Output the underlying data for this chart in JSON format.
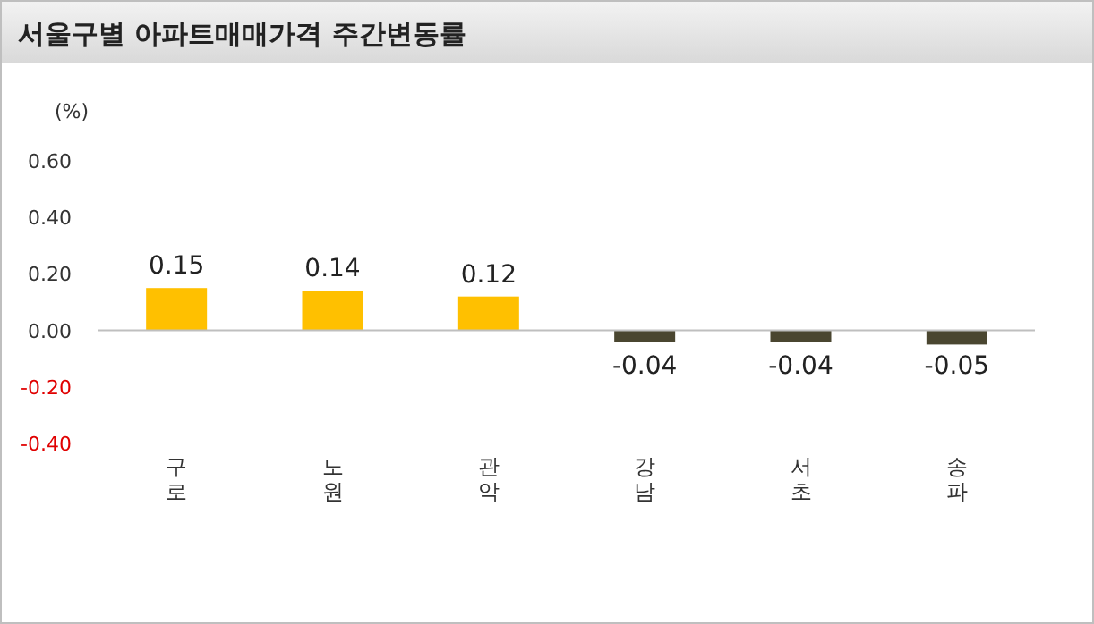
{
  "chart_data": {
    "type": "bar",
    "title": "서울구별 아파트매매가격 주간변동률",
    "ylabel": "(%)",
    "categories": [
      "구로",
      "노원",
      "관악",
      "강남",
      "서초",
      "송파"
    ],
    "values": [
      0.15,
      0.14,
      0.12,
      -0.04,
      -0.04,
      -0.05
    ],
    "colors": [
      "#ffc000",
      "#ffc000",
      "#ffc000",
      "#4a4630",
      "#4a4630",
      "#4a4630"
    ],
    "ylim": [
      -0.4,
      0.6
    ],
    "yticks": [
      {
        "value": 0.6,
        "label": "0.60"
      },
      {
        "value": 0.4,
        "label": "0.40"
      },
      {
        "value": 0.2,
        "label": "0.20"
      },
      {
        "value": 0,
        "label": "0.00"
      },
      {
        "value": -0.2,
        "label": "-0.20"
      },
      {
        "value": -0.4,
        "label": "-0.40"
      }
    ],
    "data_labels": true
  }
}
